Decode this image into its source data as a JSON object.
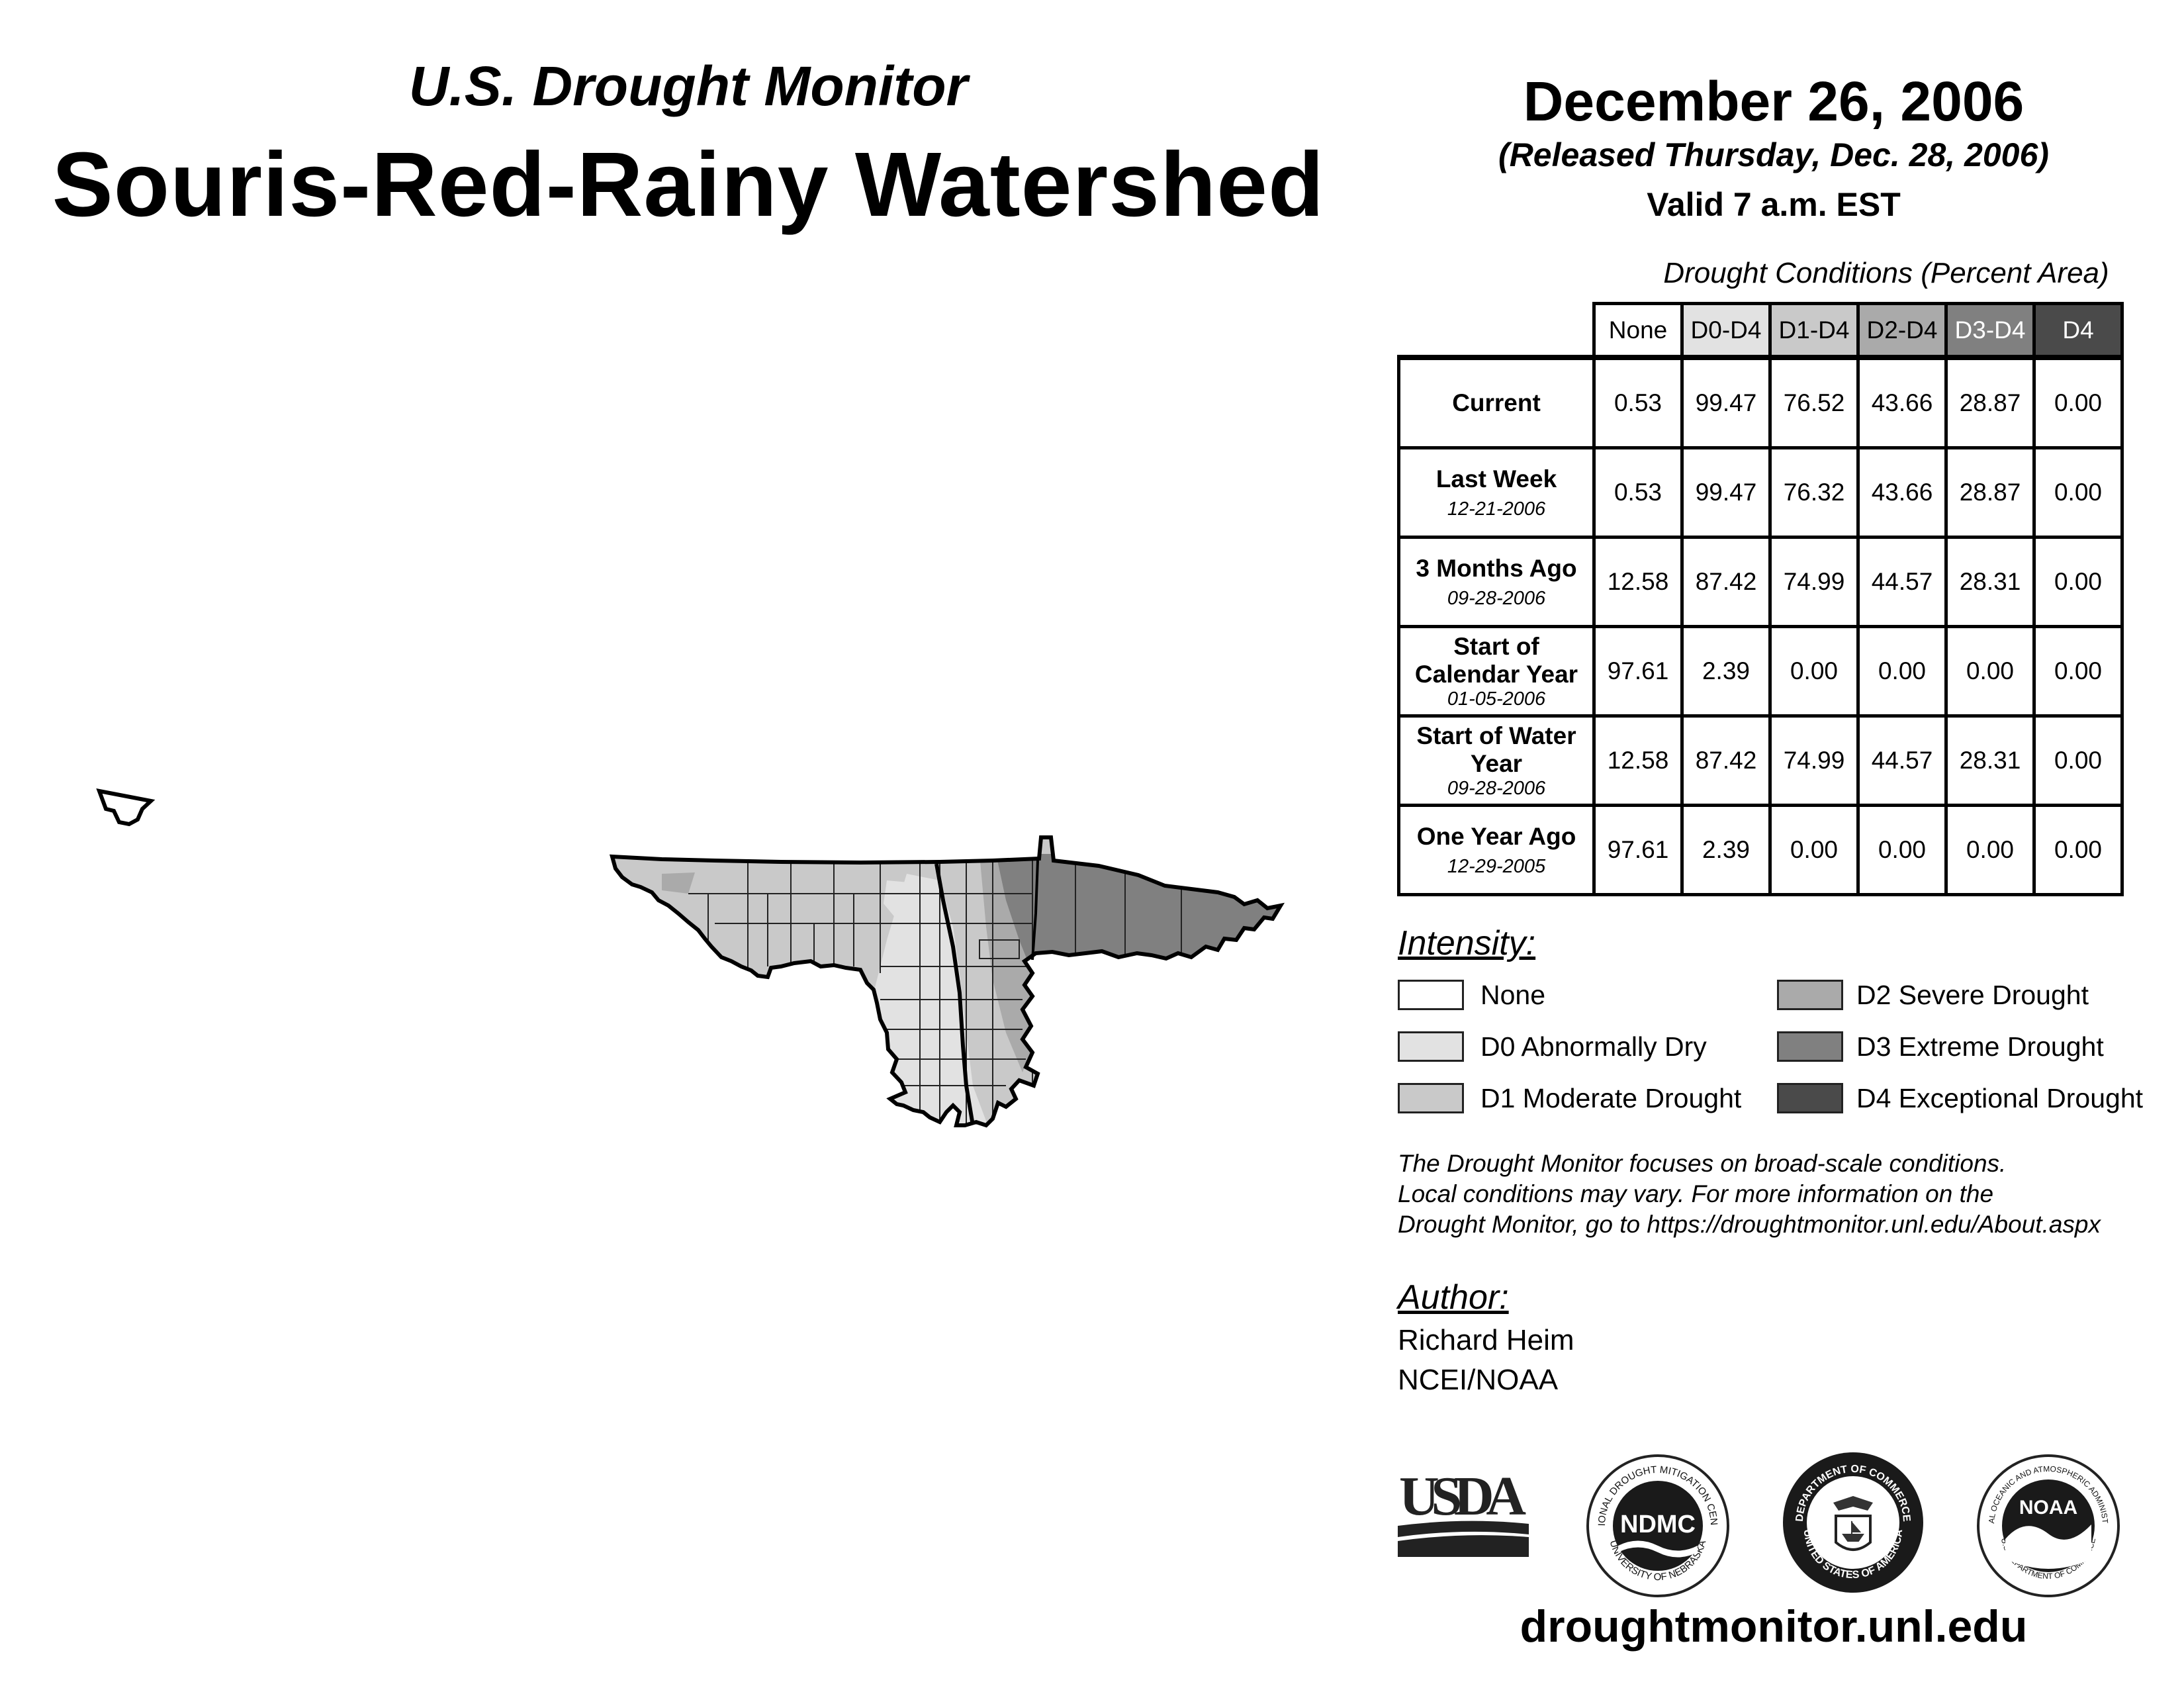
{
  "header": {
    "subtitle": "U.S. Drought Monitor",
    "title": "Souris-Red-Rainy Watershed",
    "date": "December 26, 2006",
    "released": "(Released Thursday, Dec. 28, 2006)",
    "valid": "Valid 7 a.m. EST"
  },
  "table": {
    "caption": "Drought Conditions (Percent Area)",
    "columns": [
      "None",
      "D0-D4",
      "D1-D4",
      "D2-D4",
      "D3-D4",
      "D4"
    ],
    "rows": [
      {
        "label": "Current",
        "date": "",
        "values": [
          "0.53",
          "99.47",
          "76.52",
          "43.66",
          "28.87",
          "0.00"
        ]
      },
      {
        "label": "Last Week",
        "date": "12-21-2006",
        "values": [
          "0.53",
          "99.47",
          "76.32",
          "43.66",
          "28.87",
          "0.00"
        ]
      },
      {
        "label": "3 Months Ago",
        "date": "09-28-2006",
        "values": [
          "12.58",
          "87.42",
          "74.99",
          "44.57",
          "28.31",
          "0.00"
        ]
      },
      {
        "label": "Start of Calendar Year",
        "date": "01-05-2006",
        "values": [
          "97.61",
          "2.39",
          "0.00",
          "0.00",
          "0.00",
          "0.00"
        ]
      },
      {
        "label": "Start of Water Year",
        "date": "09-28-2006",
        "values": [
          "12.58",
          "87.42",
          "74.99",
          "44.57",
          "28.31",
          "0.00"
        ]
      },
      {
        "label": "One Year Ago",
        "date": "12-29-2005",
        "values": [
          "97.61",
          "2.39",
          "0.00",
          "0.00",
          "0.00",
          "0.00"
        ]
      }
    ]
  },
  "legend": {
    "title": "Intensity:",
    "items": [
      {
        "label": "None",
        "color": "#ffffff"
      },
      {
        "label": "D0 Abnormally Dry",
        "color": "#e2e2e2"
      },
      {
        "label": "D1 Moderate Drought",
        "color": "#c9c9c9"
      },
      {
        "label": "D2 Severe Drought",
        "color": "#aaaaaa"
      },
      {
        "label": "D3 Extreme Drought",
        "color": "#808080"
      },
      {
        "label": "D4 Exceptional Drought",
        "color": "#4a4a4a"
      }
    ]
  },
  "note": {
    "line1": "The Drought Monitor focuses on broad-scale conditions.",
    "line2": "Local conditions may vary. For more information on the",
    "line3": "Drought Monitor, go to https://droughtmonitor.unl.edu/About.aspx"
  },
  "author": {
    "title": "Author:",
    "name": "Richard Heim",
    "org": "NCEI/NOAA"
  },
  "logos": {
    "usda": "USDA",
    "ndmc": "NDMC",
    "ndmc_ring_top": "NATIONAL DROUGHT MITIGATION CENTER",
    "ndmc_ring_bottom": "UNIVERSITY OF NEBRASKA",
    "doc_ring_top": "DEPARTMENT OF COMMERCE",
    "doc_ring_bottom": "UNITED STATES OF AMERICA",
    "noaa": "NOAA",
    "noaa_ring_top": "NATIONAL OCEANIC AND ATMOSPHERIC ADMINISTRATION",
    "noaa_ring_bottom": "U.S. DEPARTMENT OF COMMERCE"
  },
  "footer": {
    "site": "droughtmonitor.unl.edu"
  }
}
